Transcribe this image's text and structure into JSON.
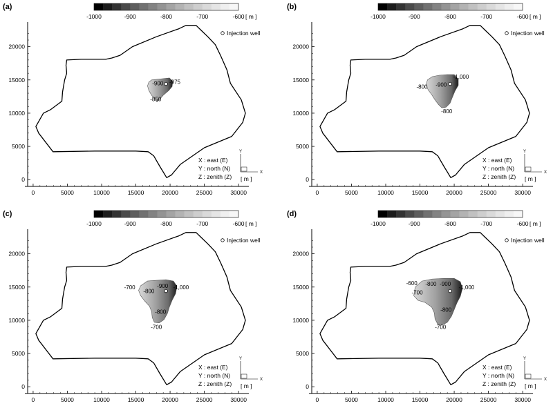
{
  "chart_data": [
    {
      "type": "heatmap",
      "panel_label": "(a)",
      "colorbar": {
        "ticks": [
          "-1000",
          "-900",
          "-800",
          "-700",
          "-600"
        ],
        "unit": "[ m ]",
        "range": [
          -1000,
          -600
        ]
      },
      "legend": {
        "marker_label": "Injection well"
      },
      "axes_note": [
        "X : east (E)",
        "Y : north (N)",
        "Z : zenith (Z)"
      ],
      "axes_unit": "[ m ]",
      "axes_glyphs": {
        "x": "X",
        "y": "Y"
      },
      "x_ticks": [
        "0",
        "5000",
        "10000",
        "15000",
        "20000",
        "25000",
        "30000"
      ],
      "y_ticks": [
        "0",
        "5000",
        "10000",
        "15000",
        "20000"
      ],
      "xlim": [
        -800,
        31500
      ],
      "ylim": [
        -600,
        23700
      ],
      "grid": false,
      "well": {
        "x": 19400,
        "y": 14400
      },
      "contour_labels": [
        {
          "text": "-900",
          "x": 18200,
          "y": 14500
        },
        {
          "text": "-975",
          "x": 20700,
          "y": 14700
        },
        {
          "text": "-850",
          "x": 17900,
          "y": 12100
        }
      ],
      "plume": [
        [
          16900,
          14700
        ],
        [
          17300,
          15000
        ],
        [
          18200,
          15100
        ],
        [
          19000,
          15200
        ],
        [
          19900,
          15300
        ],
        [
          20400,
          14800
        ],
        [
          20300,
          14000
        ],
        [
          19800,
          13400
        ],
        [
          19000,
          12700
        ],
        [
          18500,
          12100
        ],
        [
          18100,
          11700
        ],
        [
          17700,
          12200
        ],
        [
          17300,
          12700
        ],
        [
          16900,
          13400
        ],
        [
          16700,
          14100
        ]
      ]
    },
    {
      "type": "heatmap",
      "panel_label": "(b)",
      "colorbar": {
        "ticks": [
          "-1000",
          "-900",
          "-800",
          "-700",
          "-600"
        ],
        "unit": "[ m ]",
        "range": [
          -1000,
          -600
        ]
      },
      "legend": {
        "marker_label": "Injection well"
      },
      "axes_note": [
        "X : east (E)",
        "Y : north (N)",
        "Z : zenith (Z)"
      ],
      "axes_unit": "[ m ]",
      "axes_glyphs": {
        "x": "X",
        "y": "Y"
      },
      "x_ticks": [
        "0",
        "5000",
        "10000",
        "15000",
        "20000",
        "25000",
        "30000"
      ],
      "y_ticks": [
        "0",
        "5000",
        "10000",
        "15000",
        "20000"
      ],
      "xlim": [
        -800,
        31500
      ],
      "ylim": [
        -600,
        23700
      ],
      "grid": false,
      "well": {
        "x": 19400,
        "y": 14400
      },
      "contour_labels": [
        {
          "text": "-1,000",
          "x": 21000,
          "y": 15500
        },
        {
          "text": "-900",
          "x": 18100,
          "y": 14300
        },
        {
          "text": "-800",
          "x": 15300,
          "y": 14000
        },
        {
          "text": "-800",
          "x": 18900,
          "y": 10300
        }
      ],
      "plume": [
        [
          16100,
          15000
        ],
        [
          16800,
          15500
        ],
        [
          17800,
          15700
        ],
        [
          19000,
          15800
        ],
        [
          20000,
          15800
        ],
        [
          20600,
          15100
        ],
        [
          20600,
          14200
        ],
        [
          20100,
          13300
        ],
        [
          19700,
          12300
        ],
        [
          19400,
          11500
        ],
        [
          18800,
          10900
        ],
        [
          18200,
          10800
        ],
        [
          17700,
          11300
        ],
        [
          17200,
          12000
        ],
        [
          16700,
          12800
        ],
        [
          16200,
          13500
        ],
        [
          15900,
          14300
        ]
      ]
    },
    {
      "type": "heatmap",
      "panel_label": "(c)",
      "colorbar": {
        "ticks": [
          "-1000",
          "-900",
          "-800",
          "-700",
          "-600"
        ],
        "unit": "[ m ]",
        "range": [
          -1000,
          -600
        ]
      },
      "legend": {
        "marker_label": "Injection well"
      },
      "axes_note": [
        "X : east (E)",
        "Y : north (N)",
        "Z : zenith (Z)"
      ],
      "axes_unit": "[ m ]",
      "axes_glyphs": {
        "x": "X",
        "y": "Y"
      },
      "x_ticks": [
        "0",
        "5000",
        "10000",
        "15000",
        "20000",
        "25000",
        "30000"
      ],
      "y_ticks": [
        "0",
        "5000",
        "10000",
        "15000",
        "20000"
      ],
      "xlim": [
        -800,
        31500
      ],
      "ylim": [
        -600,
        23700
      ],
      "grid": false,
      "well": {
        "x": 19400,
        "y": 14400
      },
      "contour_labels": [
        {
          "text": "-1,000",
          "x": 21600,
          "y": 15000
        },
        {
          "text": "-900",
          "x": 18900,
          "y": 15200
        },
        {
          "text": "-800",
          "x": 16900,
          "y": 14400
        },
        {
          "text": "-700",
          "x": 14100,
          "y": 15000
        },
        {
          "text": "-800",
          "x": 18600,
          "y": 11300
        },
        {
          "text": "-700",
          "x": 18000,
          "y": 9000
        }
      ],
      "plume": [
        [
          15700,
          15200
        ],
        [
          16700,
          15900
        ],
        [
          18000,
          16000
        ],
        [
          19400,
          16100
        ],
        [
          20500,
          15900
        ],
        [
          21000,
          15100
        ],
        [
          20800,
          14000
        ],
        [
          20300,
          13000
        ],
        [
          19900,
          12000
        ],
        [
          19600,
          11000
        ],
        [
          19100,
          10100
        ],
        [
          18400,
          9600
        ],
        [
          17700,
          9700
        ],
        [
          17400,
          10400
        ],
        [
          17300,
          11300
        ],
        [
          17000,
          12100
        ],
        [
          16300,
          12900
        ],
        [
          15700,
          13700
        ],
        [
          15400,
          14500
        ]
      ]
    },
    {
      "type": "heatmap",
      "panel_label": "(d)",
      "colorbar": {
        "ticks": [
          "-1000",
          "-900",
          "-800",
          "-700",
          "-600"
        ],
        "unit": "[ m ]",
        "range": [
          -1000,
          -600
        ]
      },
      "legend": {
        "marker_label": "Injection well"
      },
      "axes_note": [
        "X : east (E)",
        "Y : north (N)",
        "Z : zenith (Z)"
      ],
      "axes_unit": "[ m ]",
      "axes_glyphs": {
        "x": "X",
        "y": "Y"
      },
      "x_ticks": [
        "0",
        "5000",
        "10000",
        "15000",
        "20000",
        "25000",
        "30000"
      ],
      "y_ticks": [
        "0",
        "5000",
        "10000",
        "15000",
        "20000"
      ],
      "xlim": [
        -800,
        31500
      ],
      "ylim": [
        -600,
        23700
      ],
      "grid": false,
      "well": {
        "x": 19400,
        "y": 14400
      },
      "contour_labels": [
        {
          "text": "-1,000",
          "x": 21800,
          "y": 15000
        },
        {
          "text": "-900",
          "x": 18700,
          "y": 15500
        },
        {
          "text": "-800",
          "x": 16600,
          "y": 15500
        },
        {
          "text": "-600",
          "x": 13800,
          "y": 15600
        },
        {
          "text": "-700",
          "x": 14600,
          "y": 14200
        },
        {
          "text": "-800",
          "x": 18800,
          "y": 11600
        },
        {
          "text": "-700",
          "x": 18000,
          "y": 9000
        }
      ],
      "plume": [
        [
          14300,
          15000
        ],
        [
          15300,
          15900
        ],
        [
          16800,
          16200
        ],
        [
          18500,
          16300
        ],
        [
          20000,
          16300
        ],
        [
          20900,
          15800
        ],
        [
          21200,
          14800
        ],
        [
          20900,
          13600
        ],
        [
          20400,
          12600
        ],
        [
          20000,
          11600
        ],
        [
          19600,
          10600
        ],
        [
          19000,
          9700
        ],
        [
          18300,
          9300
        ],
        [
          17600,
          9400
        ],
        [
          17200,
          10200
        ],
        [
          17100,
          11100
        ],
        [
          16700,
          12000
        ],
        [
          15700,
          12700
        ],
        [
          14700,
          13000
        ],
        [
          14100,
          13700
        ]
      ]
    }
  ],
  "domain_boundary": [
    [
      1500,
      10000
    ],
    [
      400,
      8000
    ],
    [
      800,
      7000
    ],
    [
      2900,
      4200
    ],
    [
      9000,
      4300
    ],
    [
      15000,
      4300
    ],
    [
      16800,
      4200
    ],
    [
      17600,
      3600
    ],
    [
      18500,
      2000
    ],
    [
      19500,
      300
    ],
    [
      20200,
      700
    ],
    [
      21500,
      2300
    ],
    [
      25000,
      4800
    ],
    [
      29000,
      6500
    ],
    [
      30600,
      8600
    ],
    [
      31000,
      10000
    ],
    [
      30400,
      12000
    ],
    [
      28800,
      14500
    ],
    [
      28300,
      16500
    ],
    [
      27400,
      18600
    ],
    [
      26600,
      20300
    ],
    [
      25500,
      21500
    ],
    [
      24500,
      22500
    ],
    [
      23800,
      23200
    ],
    [
      22300,
      23200
    ],
    [
      21300,
      22700
    ],
    [
      18000,
      21500
    ],
    [
      14500,
      20000
    ],
    [
      12700,
      18700
    ],
    [
      11500,
      18300
    ],
    [
      10600,
      18100
    ],
    [
      7000,
      18100
    ],
    [
      4900,
      18000
    ],
    [
      4800,
      17200
    ],
    [
      4900,
      16000
    ],
    [
      4600,
      15000
    ],
    [
      4300,
      13200
    ],
    [
      4200,
      11800
    ],
    [
      2500,
      10500
    ]
  ]
}
